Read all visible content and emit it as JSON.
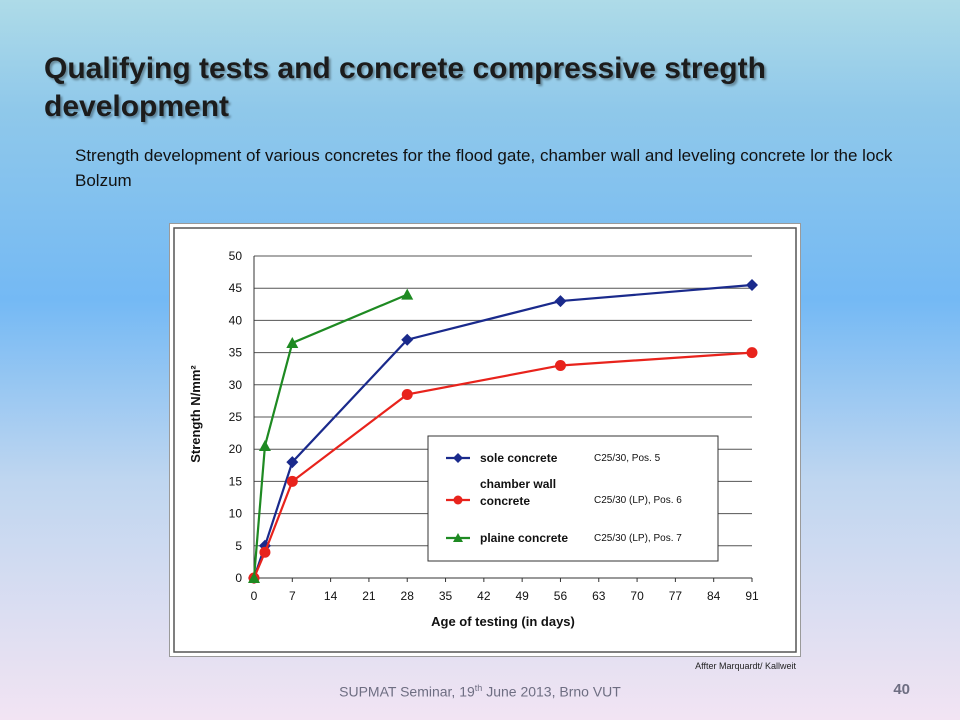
{
  "slide": {
    "title": "Qualifying tests and concrete compressive stregth development",
    "subtitle": "Strength development of various concretes for the flood gate, chamber wall and leveling concrete lor the lock Bolzum",
    "credit": "Affter Marquardt/ Kallweit",
    "footer": {
      "prefix": "SUPMAT Seminar, 19",
      "sup": "th",
      "suffix": " June 2013, Brno VUT"
    },
    "page_number": "40"
  },
  "chart_data": {
    "type": "line",
    "title": "",
    "xlabel": "Age of testing (in days)",
    "ylabel": "Strength  N/mm²",
    "xlim": [
      0,
      91
    ],
    "ylim": [
      0,
      50
    ],
    "xticks": [
      0,
      7,
      14,
      21,
      28,
      35,
      42,
      49,
      56,
      63,
      70,
      77,
      84,
      91
    ],
    "yticks": [
      0,
      5,
      10,
      15,
      20,
      25,
      30,
      35,
      40,
      45,
      50
    ],
    "grid": "horizontal",
    "legend_position": "lower-right",
    "series": [
      {
        "name": "sole concrete",
        "note": "C25/30, Pos. 5",
        "color": "#1a2a8c",
        "marker": "diamond",
        "x": [
          0,
          2,
          7,
          28,
          56,
          91
        ],
        "y": [
          0,
          5,
          18,
          37,
          43,
          45.5
        ]
      },
      {
        "name": "chamber wall concrete",
        "name_lines": [
          "chamber wall",
          "concrete"
        ],
        "note": "C25/30 (LP), Pos. 6",
        "color": "#e8231c",
        "marker": "circle",
        "x": [
          0,
          2,
          7,
          28,
          56,
          91
        ],
        "y": [
          0,
          4,
          15,
          28.5,
          33,
          35
        ]
      },
      {
        "name": "plaine concrete",
        "note": "C25/30 (LP), Pos. 7",
        "color": "#1e8a22",
        "marker": "triangle",
        "x": [
          0,
          2,
          7,
          28
        ],
        "y": [
          0,
          20.5,
          36.5,
          44
        ]
      }
    ]
  }
}
